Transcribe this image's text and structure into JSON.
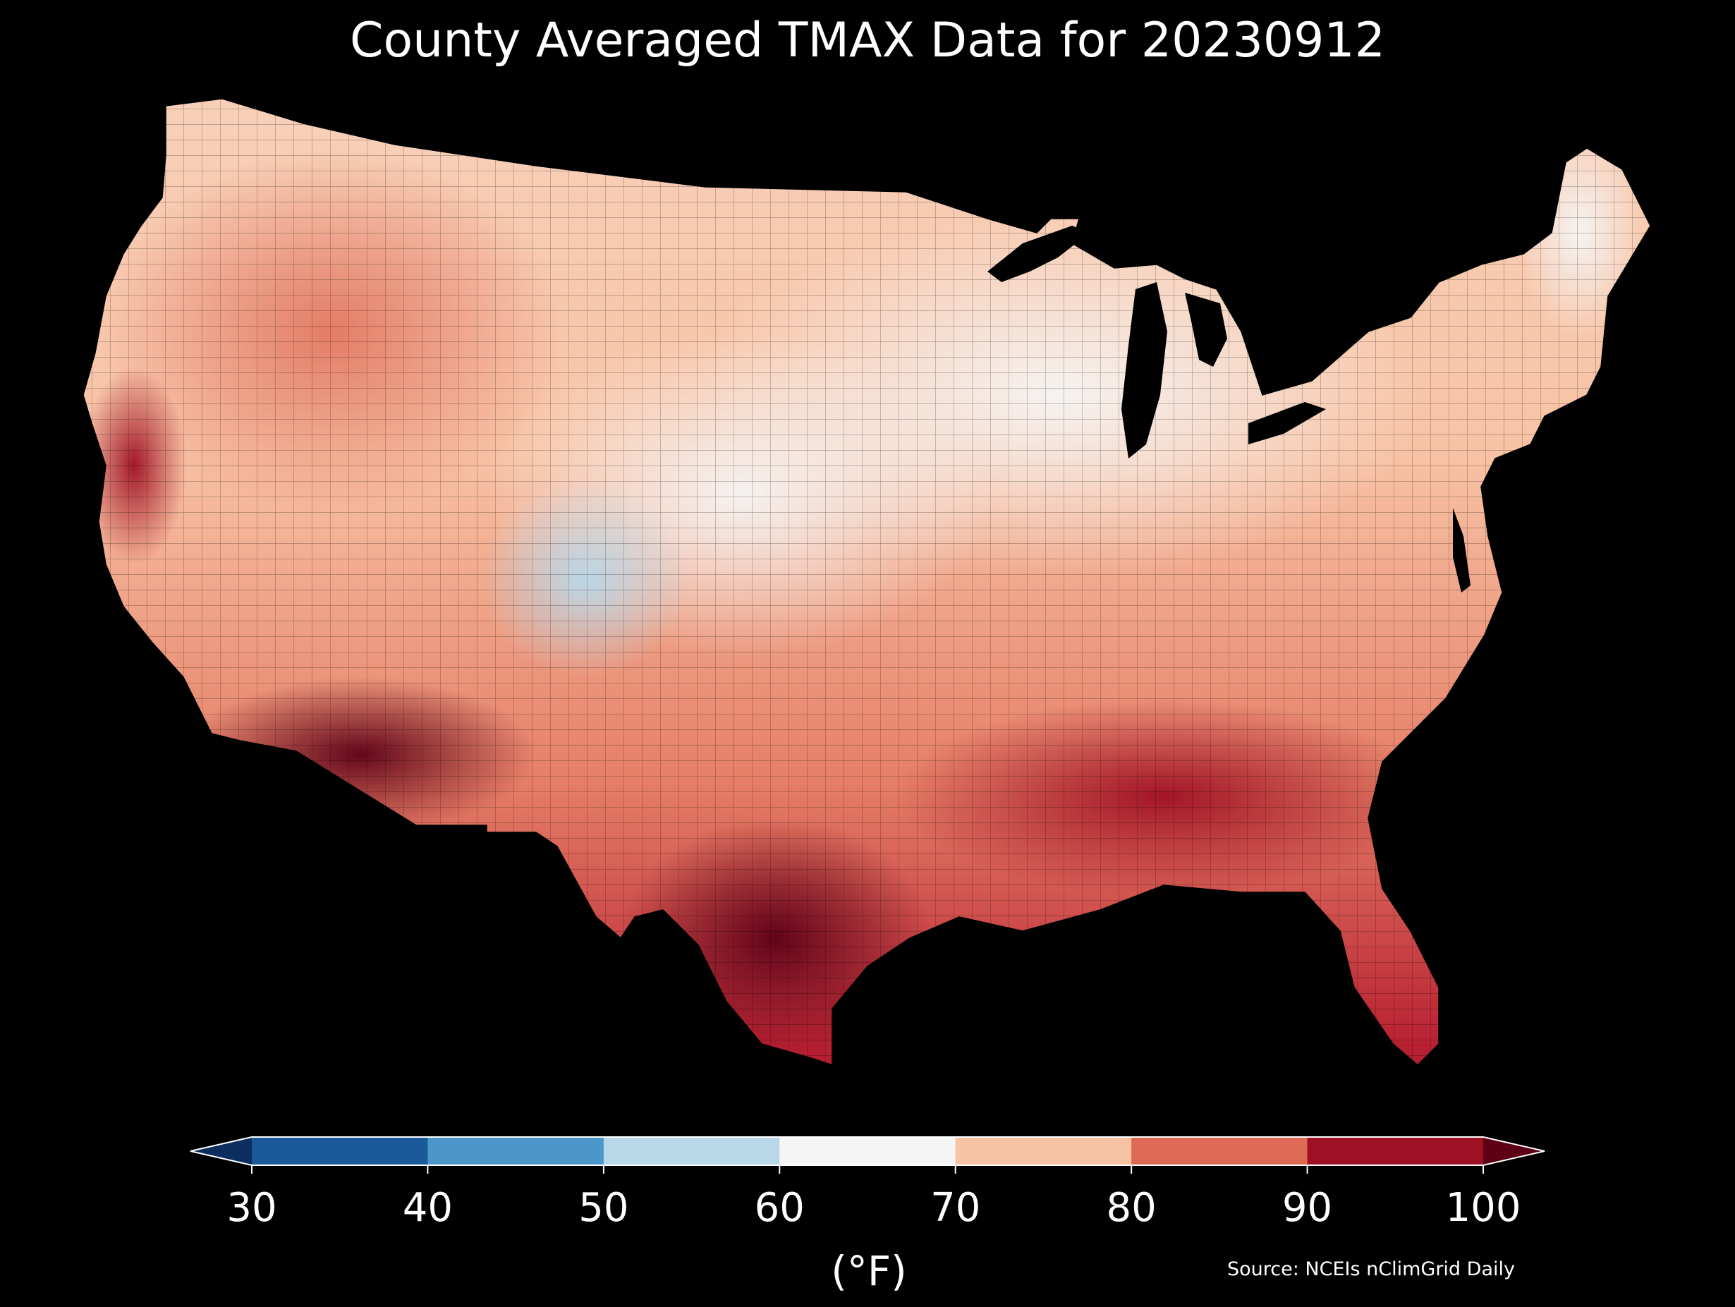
{
  "title": "County Averaged TMAX Data for 20230912",
  "source_note": "Source: NCEIs nClimGrid Daily",
  "colorbar": {
    "unit_label": "(°F)",
    "ticks": [
      "30",
      "40",
      "50",
      "60",
      "70",
      "80",
      "90",
      "100"
    ],
    "bins": [
      {
        "range": "<30",
        "color": "#0b2e5f"
      },
      {
        "range": "30-40",
        "color": "#1b5a9a"
      },
      {
        "range": "40-50",
        "color": "#4b97c9"
      },
      {
        "range": "50-60",
        "color": "#b8d8ea"
      },
      {
        "range": "60-70",
        "color": "#f5f5f5"
      },
      {
        "range": "70-80",
        "color": "#f8c2a4"
      },
      {
        "range": "80-90",
        "color": "#de6a55"
      },
      {
        "range": "90-100",
        "color": "#9e1024"
      },
      {
        "range": ">100",
        "color": "#5d0016"
      }
    ],
    "extend": "both"
  },
  "map": {
    "region": "Contiguous United States",
    "variable": "TMAX",
    "date": "20230912",
    "background_color": "#000000",
    "legend_placement": "bottom",
    "regional_pattern": [
      {
        "region": "Southwest desert / southern Arizona",
        "category": ">100"
      },
      {
        "region": "South Texas",
        "category": ">100"
      },
      {
        "region": "Central Valley, California",
        "category": "90-100"
      },
      {
        "region": "Gulf Coast and Southeast",
        "category": "90-100"
      },
      {
        "region": "Florida",
        "category": "80-90"
      },
      {
        "region": "Mid-Atlantic and Ohio Valley",
        "category": "80-90"
      },
      {
        "region": "Great Basin and Pacific Northwest",
        "category": "70-80"
      },
      {
        "region": "Central Plains",
        "category": "70-80"
      },
      {
        "region": "Upper Midwest and Great Lakes",
        "category": "60-70"
      },
      {
        "region": "Colorado Rockies",
        "category": "50-60"
      },
      {
        "region": "Northern Maine",
        "category": "60-70"
      },
      {
        "region": "Appalachian ridges",
        "category": "70-80"
      }
    ]
  }
}
